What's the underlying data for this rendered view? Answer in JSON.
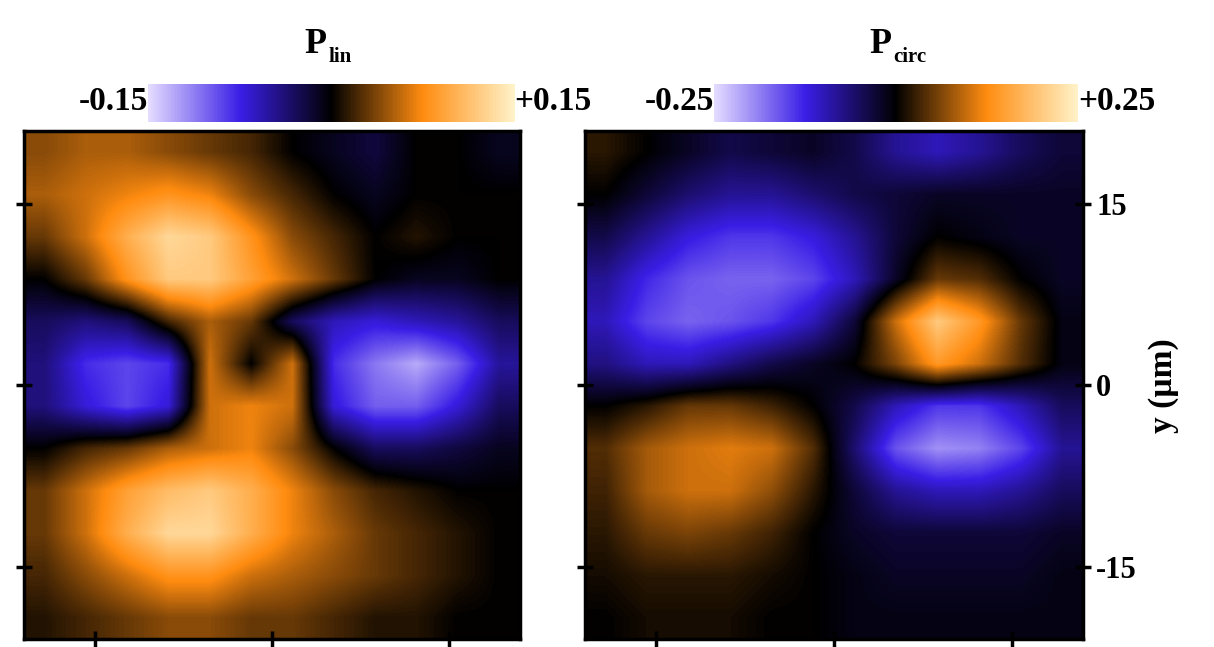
{
  "chart_data": [
    {
      "type": "heatmap",
      "title": "P",
      "title_subscript": "lin",
      "xlim": [
        -21,
        21
      ],
      "ylim": [
        -21,
        21
      ],
      "xticks": [
        -15,
        0,
        15
      ],
      "yticks": [
        -15,
        0,
        15
      ],
      "tick_labels": false,
      "colors": [
        "#e4dcff",
        "#3a1ee6",
        "#000000",
        "#ff8c10",
        "#fff2c8"
      ],
      "colorbar": {
        "range": [
          -0.15,
          0.15
        ],
        "ticks": [
          {
            "value": -0.15,
            "label": "-0.15"
          },
          {
            "value": 0.15,
            "label": "+0.15"
          }
        ]
      },
      "cells": [
        [
          0.04,
          0.05,
          0.05,
          0.04,
          0.03,
          0.02,
          0.0,
          -0.01,
          -0.02,
          0.0,
          0.0,
          -0.01
        ],
        [
          0.05,
          0.06,
          0.07,
          0.08,
          0.07,
          0.04,
          0.02,
          0.0,
          -0.01,
          0.0,
          0.0,
          0.0
        ],
        [
          0.03,
          0.06,
          0.1,
          0.13,
          0.12,
          0.08,
          0.04,
          0.02,
          0.0,
          0.01,
          0.0,
          0.0
        ],
        [
          0.0,
          0.03,
          0.08,
          0.12,
          0.12,
          0.09,
          0.06,
          0.03,
          0.0,
          -0.01,
          -0.01,
          0.0
        ],
        [
          -0.03,
          -0.04,
          -0.03,
          0.02,
          0.05,
          0.03,
          -0.03,
          -0.06,
          -0.07,
          -0.06,
          -0.05,
          -0.03
        ],
        [
          -0.04,
          -0.08,
          -0.09,
          -0.08,
          0.06,
          0.0,
          0.06,
          -0.08,
          -0.11,
          -0.13,
          -0.1,
          -0.05
        ],
        [
          -0.04,
          -0.07,
          -0.09,
          -0.07,
          0.06,
          0.07,
          0.06,
          -0.07,
          -0.1,
          -0.1,
          -0.07,
          -0.03
        ],
        [
          0.0,
          0.02,
          0.03,
          0.05,
          0.06,
          0.07,
          0.04,
          0.0,
          -0.03,
          -0.03,
          -0.02,
          -0.01
        ],
        [
          0.03,
          0.06,
          0.09,
          0.11,
          0.12,
          0.1,
          0.07,
          0.04,
          0.02,
          0.01,
          0.0,
          0.0
        ],
        [
          0.03,
          0.06,
          0.1,
          0.13,
          0.13,
          0.1,
          0.07,
          0.05,
          0.03,
          0.02,
          0.01,
          0.0
        ],
        [
          0.02,
          0.04,
          0.06,
          0.08,
          0.08,
          0.06,
          0.05,
          0.04,
          0.03,
          0.02,
          0.01,
          0.0
        ],
        [
          0.01,
          0.02,
          0.03,
          0.04,
          0.04,
          0.03,
          0.03,
          0.02,
          0.01,
          0.01,
          0.0,
          0.0
        ]
      ]
    },
    {
      "type": "heatmap",
      "title": "P",
      "title_subscript": "circ",
      "xlim": [
        -21,
        21
      ],
      "ylim": [
        -21,
        21
      ],
      "xticks": [
        -15,
        0,
        15
      ],
      "yticks": [
        -15,
        0,
        15
      ],
      "tick_labels": "y",
      "ylabel": "y (µm)",
      "colors": [
        "#e4dcff",
        "#3a1ee6",
        "#000000",
        "#ff8c10",
        "#fff2c8"
      ],
      "colorbar": {
        "range": [
          -0.25,
          0.25
        ],
        "ticks": [
          {
            "value": -0.25,
            "label": "-0.25"
          },
          {
            "value": 0.25,
            "label": "+0.25"
          }
        ]
      },
      "cells": [
        [
          0.02,
          0.0,
          -0.02,
          -0.04,
          -0.03,
          -0.02,
          -0.04,
          -0.08,
          -0.1,
          -0.08,
          -0.05,
          -0.03
        ],
        [
          0.0,
          -0.03,
          -0.06,
          -0.08,
          -0.08,
          -0.06,
          -0.04,
          -0.03,
          -0.02,
          -0.02,
          -0.02,
          -0.02
        ],
        [
          -0.04,
          -0.08,
          -0.12,
          -0.14,
          -0.14,
          -0.12,
          -0.08,
          -0.03,
          0.0,
          -0.01,
          -0.02,
          -0.02
        ],
        [
          -0.08,
          -0.13,
          -0.16,
          -0.17,
          -0.17,
          -0.15,
          -0.1,
          -0.02,
          0.05,
          0.04,
          0.0,
          -0.02
        ],
        [
          -0.1,
          -0.15,
          -0.17,
          -0.16,
          -0.14,
          -0.1,
          -0.03,
          0.1,
          0.2,
          0.14,
          0.05,
          -0.01
        ],
        [
          -0.07,
          -0.1,
          -0.1,
          -0.07,
          -0.04,
          -0.02,
          0.0,
          0.06,
          0.14,
          0.1,
          0.04,
          -0.01
        ],
        [
          0.0,
          0.02,
          0.05,
          0.05,
          0.03,
          0.0,
          -0.04,
          -0.1,
          -0.14,
          -0.14,
          -0.1,
          -0.05
        ],
        [
          0.04,
          0.08,
          0.1,
          0.11,
          0.1,
          0.04,
          -0.06,
          -0.16,
          -0.2,
          -0.19,
          -0.15,
          -0.08
        ],
        [
          0.03,
          0.08,
          0.1,
          0.1,
          0.07,
          0.02,
          -0.03,
          -0.08,
          -0.1,
          -0.1,
          -0.08,
          -0.05
        ],
        [
          0.02,
          0.05,
          0.06,
          0.05,
          0.03,
          0.0,
          -0.02,
          -0.03,
          -0.03,
          -0.03,
          -0.03,
          -0.02
        ],
        [
          0.01,
          0.02,
          0.02,
          0.02,
          0.01,
          0.0,
          -0.01,
          -0.02,
          -0.02,
          -0.02,
          -0.02,
          -0.01
        ],
        [
          0.0,
          0.01,
          0.01,
          0.01,
          0.0,
          0.0,
          -0.01,
          -0.01,
          -0.01,
          -0.01,
          -0.01,
          -0.01
        ]
      ]
    }
  ]
}
